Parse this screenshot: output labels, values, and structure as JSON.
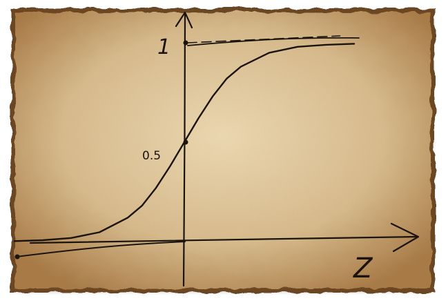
{
  "paper": {
    "base_color": "#d9bd8f",
    "edge_color": "#6b4622",
    "ink_color": "#1a140c"
  },
  "chart_data": {
    "type": "line",
    "title": "",
    "xlabel": "Z",
    "ylabel": "",
    "grid": false,
    "legend": "none",
    "y_ticks": [
      {
        "value": 1,
        "label": "1"
      },
      {
        "value": 0.5,
        "label": "0.5"
      }
    ],
    "asymptote_y": 1,
    "xlim": [
      -6,
      7
    ],
    "ylim": [
      -0.1,
      1.06
    ],
    "series": [
      {
        "x": [
          -6,
          -5,
          -4,
          -3,
          -2,
          -1.5,
          -1,
          -0.5,
          0,
          0.5,
          1,
          1.5,
          2,
          3,
          4,
          5,
          6
        ],
        "values": [
          0.0025,
          0.007,
          0.018,
          0.047,
          0.12,
          0.18,
          0.27,
          0.38,
          0.5,
          0.62,
          0.73,
          0.82,
          0.88,
          0.95,
          0.98,
          0.99,
          0.995
        ]
      }
    ]
  }
}
